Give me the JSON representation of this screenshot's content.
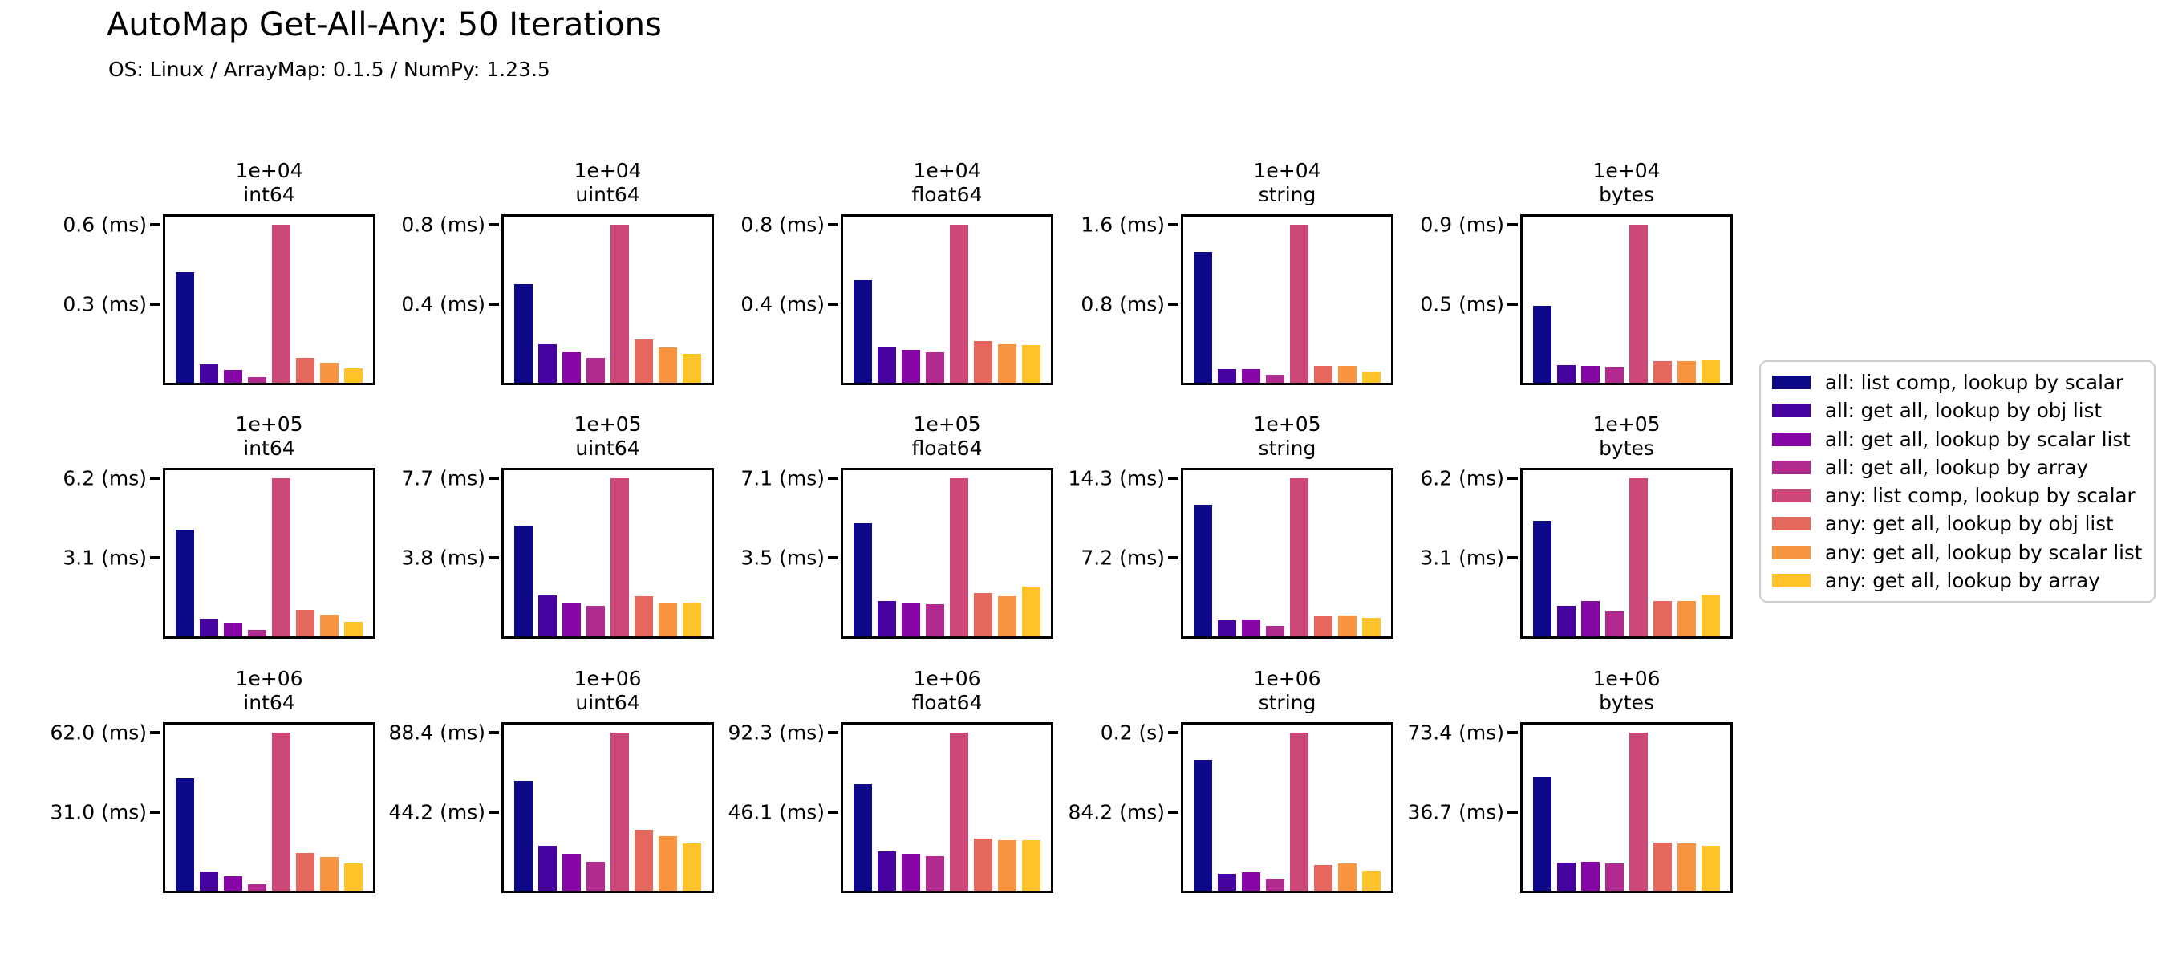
{
  "header": {
    "title": "AutoMap Get-All-Any: 50 Iterations",
    "subtitle": "OS: Linux / ArrayMap: 0.1.5 / NumPy: 1.23.5"
  },
  "chart_data": {
    "type": "bar",
    "layout": "grid of 15 small-multiple bar charts, 3 rows (array size) x 5 columns (dtype)",
    "values_unit": "ms",
    "grid": {
      "row_sizes": [
        "1e+04",
        "1e+05",
        "1e+06"
      ],
      "col_dtypes": [
        "int64",
        "uint64",
        "float64",
        "string",
        "bytes"
      ]
    },
    "series": [
      {
        "label": "all: list comp, lookup by scalar",
        "color": "#0d0887"
      },
      {
        "label": "all: get all, lookup by obj list",
        "color": "#46039f"
      },
      {
        "label": "all: get all, lookup by scalar list",
        "color": "#8606a6"
      },
      {
        "label": "all: get all, lookup by array",
        "color": "#b02a90"
      },
      {
        "label": "any: list comp, lookup by scalar",
        "color": "#cc4878"
      },
      {
        "label": "any: get all, lookup by obj list",
        "color": "#e4685e"
      },
      {
        "label": "any: get all, lookup by scalar list",
        "color": "#f79540"
      },
      {
        "label": "any: get all, lookup by array",
        "color": "#fdc328"
      }
    ],
    "legend_position": "right",
    "subplots": [
      {
        "size": "1e+04",
        "dtype": "int64",
        "yticks": [
          "0.6 (ms)",
          "0.3 (ms)"
        ],
        "ymax": 0.6,
        "values": [
          0.42,
          0.07,
          0.05,
          0.02,
          0.6,
          0.095,
          0.075,
          0.055
        ]
      },
      {
        "size": "1e+04",
        "dtype": "uint64",
        "yticks": [
          "0.8 (ms)",
          "0.4 (ms)"
        ],
        "ymax": 0.8,
        "values": [
          0.5,
          0.195,
          0.155,
          0.125,
          0.8,
          0.22,
          0.18,
          0.145
        ]
      },
      {
        "size": "1e+04",
        "dtype": "float64",
        "yticks": [
          "0.8 (ms)",
          "0.4 (ms)"
        ],
        "ymax": 0.8,
        "values": [
          0.52,
          0.185,
          0.165,
          0.155,
          0.8,
          0.21,
          0.195,
          0.19
        ]
      },
      {
        "size": "1e+04",
        "dtype": "string",
        "yticks": [
          "1.6 (ms)",
          "0.8 (ms)"
        ],
        "ymax": 1.6,
        "values": [
          1.33,
          0.135,
          0.135,
          0.08,
          1.6,
          0.17,
          0.17,
          0.115
        ]
      },
      {
        "size": "1e+04",
        "dtype": "bytes",
        "yticks": [
          "0.9 (ms)",
          "0.5 (ms)"
        ],
        "ymax": 0.9,
        "values": [
          0.44,
          0.1,
          0.095,
          0.09,
          0.9,
          0.125,
          0.125,
          0.135
        ]
      },
      {
        "size": "1e+05",
        "dtype": "int64",
        "yticks": [
          "6.2 (ms)",
          "3.1 (ms)"
        ],
        "ymax": 6.2,
        "values": [
          4.2,
          0.71,
          0.55,
          0.24,
          6.2,
          1.03,
          0.85,
          0.56
        ]
      },
      {
        "size": "1e+05",
        "dtype": "uint64",
        "yticks": [
          "7.7 (ms)",
          "3.8 (ms)"
        ],
        "ymax": 7.7,
        "values": [
          5.4,
          2.0,
          1.6,
          1.5,
          7.7,
          1.95,
          1.6,
          1.65
        ]
      },
      {
        "size": "1e+05",
        "dtype": "float64",
        "yticks": [
          "7.1 (ms)",
          "3.5 (ms)"
        ],
        "ymax": 7.1,
        "values": [
          5.1,
          1.6,
          1.5,
          1.45,
          7.1,
          1.95,
          1.8,
          2.25
        ]
      },
      {
        "size": "1e+05",
        "dtype": "string",
        "yticks": [
          "14.3 (ms)",
          "7.2 (ms)"
        ],
        "ymax": 14.3,
        "values": [
          11.9,
          1.45,
          1.5,
          0.95,
          14.3,
          1.8,
          1.9,
          1.65
        ]
      },
      {
        "size": "1e+05",
        "dtype": "bytes",
        "yticks": [
          "6.2 (ms)",
          "3.1 (ms)"
        ],
        "ymax": 6.2,
        "values": [
          4.55,
          1.2,
          1.4,
          1.0,
          6.2,
          1.4,
          1.4,
          1.65
        ]
      },
      {
        "size": "1e+06",
        "dtype": "int64",
        "yticks": [
          "62.0 (ms)",
          "31.0 (ms)"
        ],
        "ymax": 62.0,
        "values": [
          44.0,
          7.6,
          5.8,
          2.5,
          62.0,
          14.9,
          13.1,
          10.8
        ]
      },
      {
        "size": "1e+06",
        "dtype": "uint64",
        "yticks": [
          "88.4 (ms)",
          "44.2 (ms)"
        ],
        "ymax": 88.4,
        "values": [
          61.7,
          25.2,
          20.5,
          16.3,
          88.4,
          34.3,
          30.4,
          26.7
        ]
      },
      {
        "size": "1e+06",
        "dtype": "float64",
        "yticks": [
          "92.3 (ms)",
          "46.1 (ms)"
        ],
        "ymax": 92.3,
        "values": [
          62.5,
          22.9,
          21.4,
          20.1,
          92.3,
          30.7,
          29.4,
          29.6
        ]
      },
      {
        "size": "1e+06",
        "dtype": "string",
        "yticks": [
          "0.2 (s)",
          "84.2 (ms)"
        ],
        "ymax": 168.4,
        "values": [
          140.0,
          18.4,
          20.1,
          12.7,
          168.4,
          27.7,
          29.1,
          21.5
        ]
      },
      {
        "size": "1e+06",
        "dtype": "bytes",
        "yticks": [
          "73.4 (ms)",
          "36.7 (ms)"
        ],
        "ymax": 73.4,
        "values": [
          53.0,
          13.2,
          13.6,
          12.7,
          73.4,
          22.4,
          22.0,
          21.1
        ]
      }
    ]
  }
}
